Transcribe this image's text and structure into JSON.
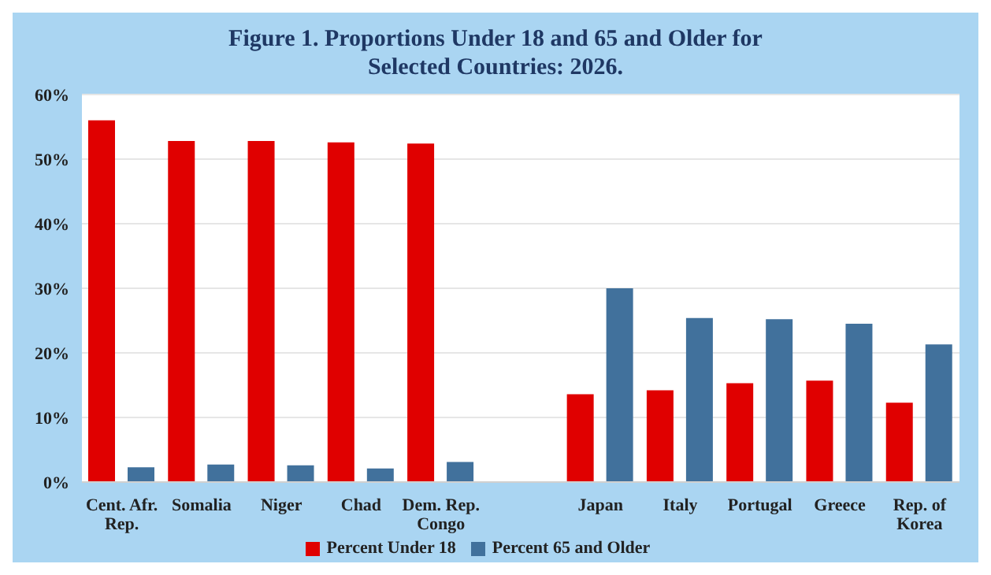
{
  "chart_data": {
    "type": "bar",
    "title": "Figure 1. Proportions Under 18 and 65 and Older for Selected Countries: 2026.",
    "categories": [
      "Cent. Afr. Rep.",
      "Somalia",
      "Niger",
      "Chad",
      "Dem. Rep. Congo",
      null,
      "Japan",
      "Italy",
      "Portugal",
      "Greece",
      "Rep. of Korea"
    ],
    "series": [
      {
        "name": "Percent Under 18",
        "color": "#e00000",
        "values": [
          56.0,
          52.8,
          52.8,
          52.6,
          52.4,
          null,
          13.6,
          14.2,
          15.3,
          15.7,
          12.3
        ]
      },
      {
        "name": "Percent 65 and Older",
        "color": "#41719c",
        "values": [
          2.3,
          2.7,
          2.6,
          2.1,
          3.1,
          null,
          30.0,
          25.4,
          25.2,
          24.5,
          21.3
        ]
      }
    ],
    "ylim": [
      0,
      60
    ],
    "yticks": [
      {
        "value": 0,
        "label": "0%"
      },
      {
        "value": 10,
        "label": "10%"
      },
      {
        "value": 20,
        "label": "20%"
      },
      {
        "value": 30,
        "label": "30%"
      },
      {
        "value": 40,
        "label": "40%"
      },
      {
        "value": 50,
        "label": "50%"
      },
      {
        "value": 60,
        "label": "60%"
      }
    ],
    "grid": "y",
    "legend": "bottom"
  }
}
